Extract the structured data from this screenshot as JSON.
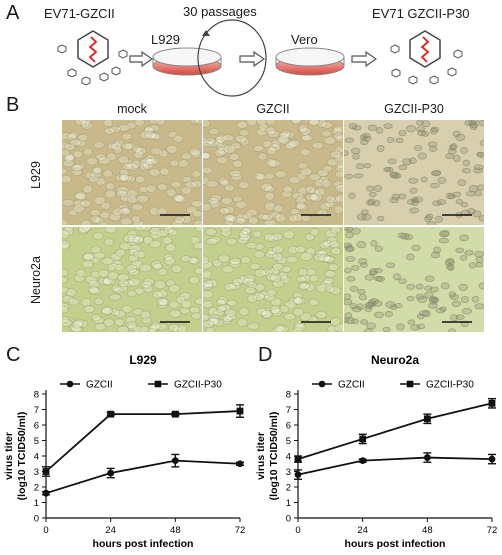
{
  "panelA": {
    "letter": "A",
    "virus_start": "EV71-GZCII",
    "passages": "30 passages",
    "cell1": "L929",
    "cell2": "Vero",
    "virus_end": "EV71 GZCII-P30"
  },
  "panelB": {
    "letter": "B",
    "columns": [
      "mock",
      "GZCII",
      "GZCII-P30"
    ],
    "rows": [
      "L929",
      "Neuro2a"
    ],
    "colors": {
      "l929": "#c9b98a",
      "l929_p30": "#d8cfae",
      "neuro": "#c3cf8c",
      "neuro_p30": "#d2dca8",
      "cell_edge": "#8a8d6a"
    }
  },
  "chart_data": [
    {
      "type": "line",
      "panel_letter": "C",
      "title": "L929",
      "xlabel": "hours post infection",
      "ylabel": "virus titer",
      "ylabel_sub": "(log10 TCID50/ml)",
      "x": [
        0,
        24,
        48,
        72
      ],
      "xticks": [
        "0",
        "24",
        "48",
        "72"
      ],
      "yticks": [
        "0",
        "1",
        "2",
        "3",
        "4",
        "5",
        "6",
        "7",
        "8"
      ],
      "ylim": [
        0,
        8
      ],
      "series": [
        {
          "name": "GZCII",
          "marker": "circle",
          "values": [
            1.6,
            2.9,
            3.7,
            3.5
          ],
          "err": [
            0.1,
            0.3,
            0.4,
            0.1
          ]
        },
        {
          "name": "GZCII-P30",
          "marker": "square",
          "values": [
            3.0,
            6.7,
            6.7,
            6.9
          ],
          "err": [
            0.3,
            0.1,
            0.1,
            0.4
          ]
        }
      ]
    },
    {
      "type": "line",
      "panel_letter": "D",
      "title": "Neuro2a",
      "xlabel": "hours post infection",
      "ylabel": "virus titer",
      "ylabel_sub": "(log10 TCID50/ml)",
      "x": [
        0,
        24,
        48,
        72
      ],
      "xticks": [
        "0",
        "24",
        "48",
        "72"
      ],
      "yticks": [
        "0",
        "1",
        "2",
        "3",
        "4",
        "5",
        "6",
        "7",
        "8"
      ],
      "ylim": [
        0,
        8
      ],
      "series": [
        {
          "name": "GZCII",
          "marker": "circle",
          "values": [
            2.8,
            3.7,
            3.9,
            3.8
          ],
          "err": [
            0.3,
            0.1,
            0.3,
            0.3
          ]
        },
        {
          "name": "GZCII-P30",
          "marker": "square",
          "values": [
            3.8,
            5.1,
            6.4,
            7.4
          ],
          "err": [
            0.2,
            0.3,
            0.3,
            0.3
          ]
        }
      ]
    }
  ]
}
